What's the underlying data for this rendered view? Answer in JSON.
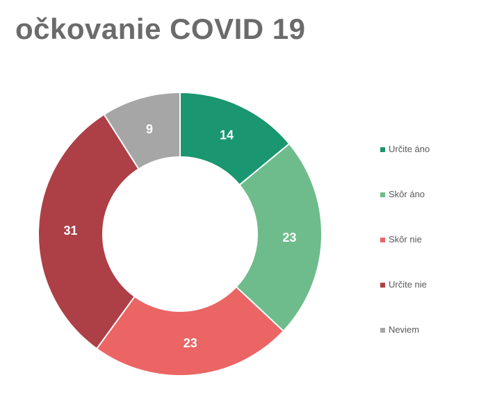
{
  "page": {
    "title": "očkovanie COVID 19"
  },
  "chart_data": {
    "type": "pie",
    "variant": "donut",
    "title": "očkovanie COVID 19",
    "categories": [
      "Určite áno",
      "Skôr áno",
      "Skôr nie",
      "Určite nie",
      "Neviem"
    ],
    "values": [
      14,
      23,
      23,
      31,
      9
    ],
    "colors": [
      "#1a9670",
      "#6ebc8b",
      "#eb6565",
      "#ad3f47",
      "#a6a6a6"
    ],
    "data_labels": [
      "14",
      "23",
      "23",
      "31",
      "9"
    ],
    "legend_position": "right"
  }
}
